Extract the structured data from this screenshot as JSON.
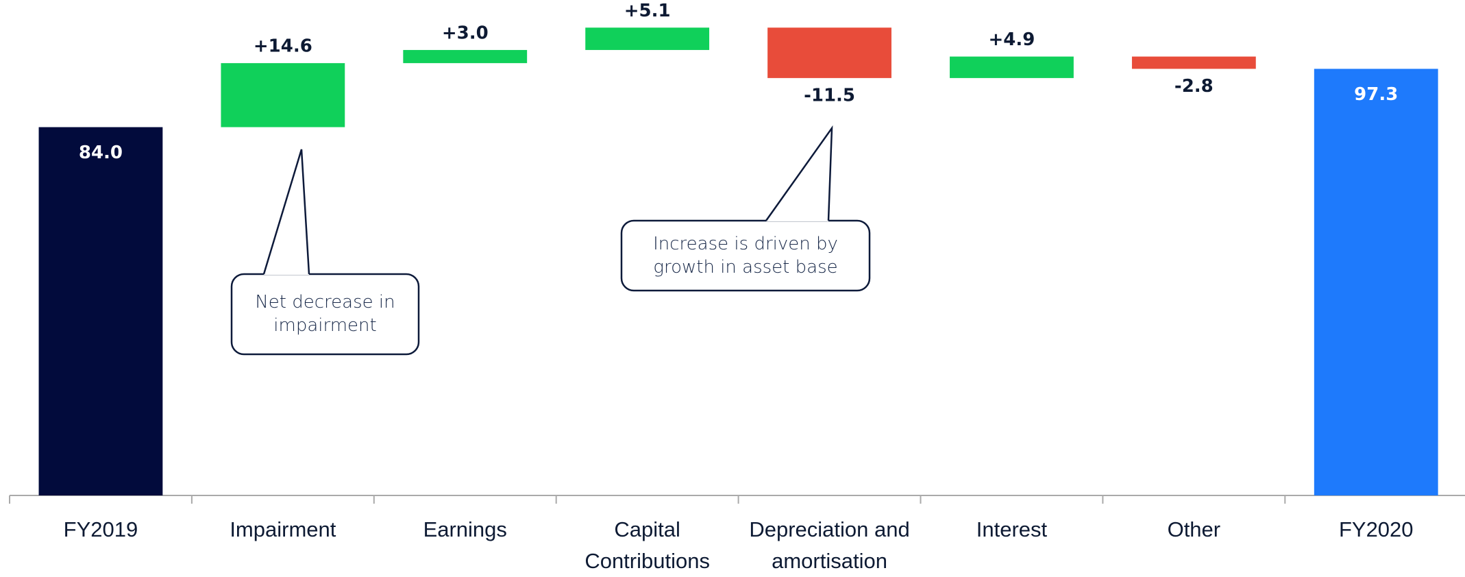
{
  "chart_data": {
    "type": "waterfall",
    "categories": [
      "FY2019",
      "Impairment",
      "Earnings",
      "Capital Contributions",
      "Depreciation and amortisation",
      "Interest",
      "Other",
      "FY2020"
    ],
    "values": [
      84.0,
      14.6,
      3.0,
      5.1,
      -11.5,
      4.9,
      -2.8,
      97.3
    ],
    "value_labels": [
      "84.0",
      "+14.6",
      "+3.0",
      "+5.1",
      "-11.5",
      "+4.9",
      "-2.8",
      "97.3"
    ],
    "totals": [
      true,
      false,
      false,
      false,
      false,
      false,
      false,
      true
    ],
    "colors": [
      "#020b3c",
      "#10d05a",
      "#10d05a",
      "#10d05a",
      "#e84c3a",
      "#10d05a",
      "#e84c3a",
      "#1e7afc"
    ],
    "ylim": [
      0,
      113
    ],
    "annotations": [
      {
        "lines": [
          "Net decrease in",
          "impairment"
        ]
      },
      {
        "lines": [
          "Increase is driven by",
          "growth in asset base"
        ]
      }
    ]
  }
}
